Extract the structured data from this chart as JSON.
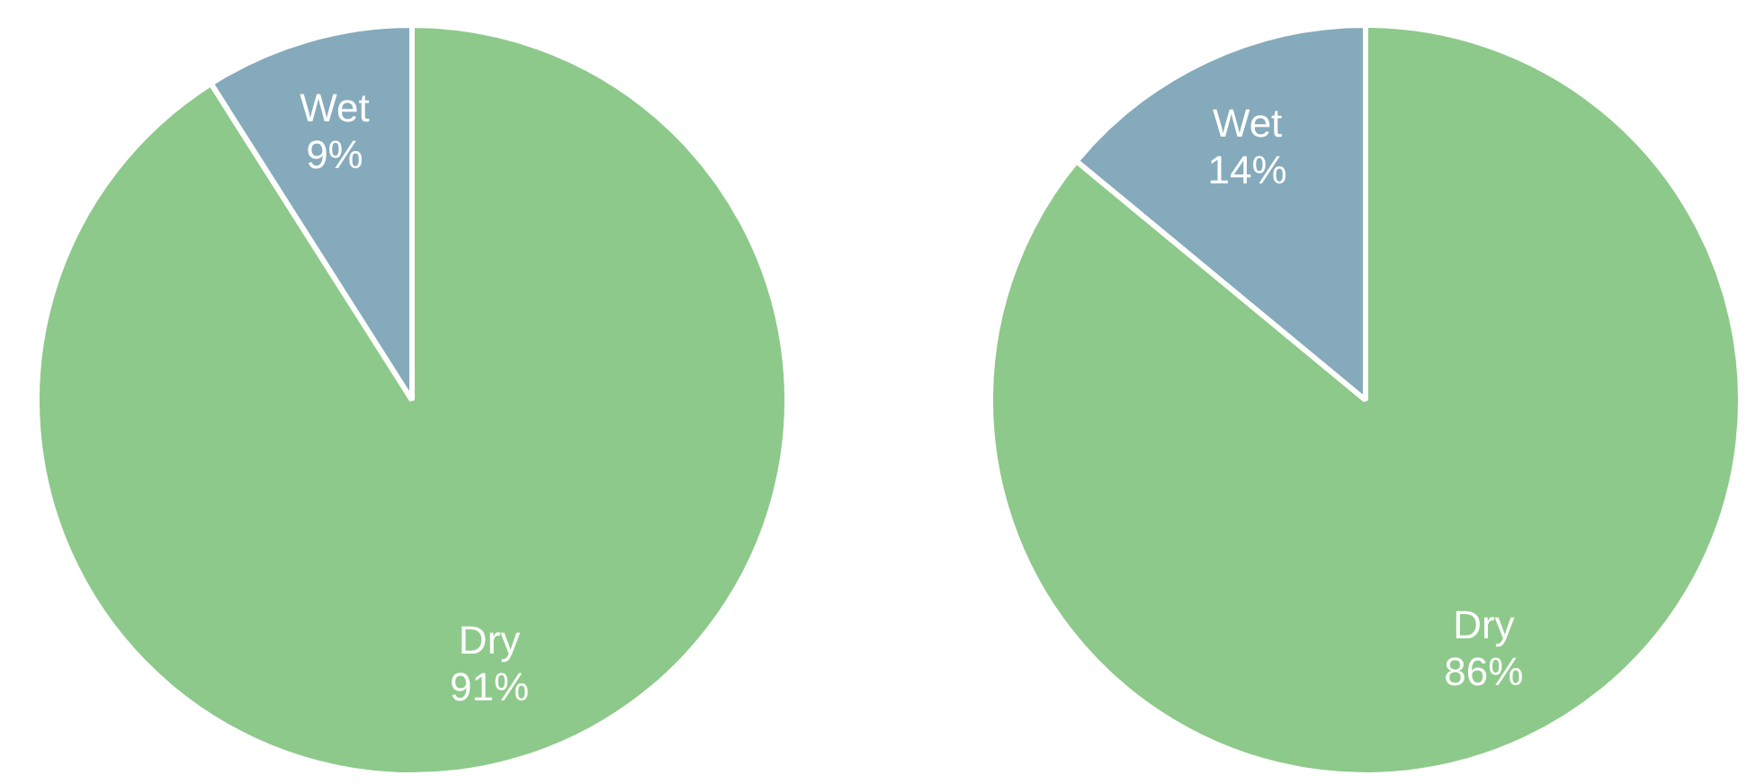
{
  "chart_data": [
    {
      "type": "pie",
      "categories": [
        "Dry",
        "Wet"
      ],
      "values": [
        91,
        9
      ],
      "colors": [
        "#8dc98a",
        "#84aabb"
      ],
      "value_labels": [
        "91%",
        "9%"
      ]
    },
    {
      "type": "pie",
      "categories": [
        "Dry",
        "Wet"
      ],
      "values": [
        86,
        14
      ],
      "colors": [
        "#8dc98a",
        "#84aabb"
      ],
      "value_labels": [
        "86%",
        "14%"
      ]
    }
  ]
}
